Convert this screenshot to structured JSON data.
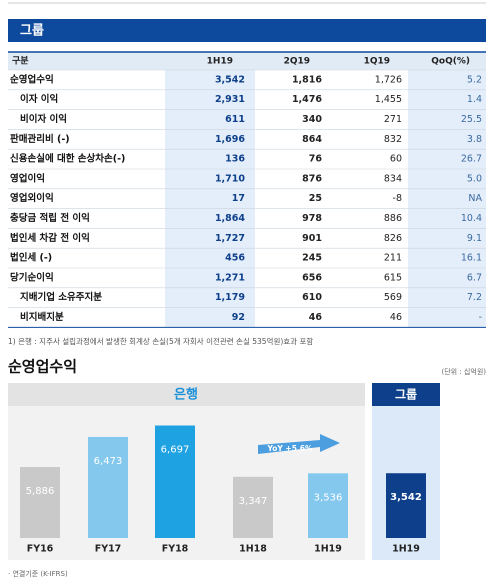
{
  "header": {
    "title": "그룹"
  },
  "table": {
    "columns": [
      "구분",
      "1H19",
      "2Q19",
      "1Q19",
      "QoQ(%)"
    ],
    "rows": [
      [
        "순영업수익",
        "3,542",
        "1,816",
        "1,726",
        "5.2"
      ],
      [
        "이자 이익",
        "2,931",
        "1,476",
        "1,455",
        "1.4"
      ],
      [
        "비이자 이익",
        "611",
        "340",
        "271",
        "25.5"
      ],
      [
        "판매관리비 (-)",
        "1,696",
        "864",
        "832",
        "3.8"
      ],
      [
        "신용손실에 대한 손상차손(-)",
        "136",
        "76",
        "60",
        "26.7"
      ],
      [
        "영업이익",
        "1,710",
        "876",
        "834",
        "5.0"
      ],
      [
        "영업외이익",
        "17",
        "25",
        "-8",
        "NA"
      ],
      [
        "충당금 적립 전 이익",
        "1,864",
        "978",
        "886",
        "10.4"
      ],
      [
        "법인세 차감 전 이익",
        "1,727",
        "901",
        "826",
        "9.1"
      ],
      [
        "법인세 (-)",
        "456",
        "245",
        "211",
        "16.1"
      ],
      [
        "당기순이익",
        "1,271",
        "656",
        "615",
        "6.7"
      ],
      [
        "지배기업 소유주지분",
        "1,179",
        "610",
        "569",
        "7.2"
      ],
      [
        "비지배지분",
        "92",
        "46",
        "46",
        "-"
      ]
    ]
  },
  "footnote": "1) 은행 : 지주사 설립과정에서 발생한 회계상 손실(5개 자회사 이전관련 손실 535억원)효과 포함",
  "section": {
    "title": "순영업수익",
    "unit": "(단위 : 십억원)",
    "bank_label": "은행",
    "group_label": "그룹",
    "note": "· 연결기준 (K-IFRS)"
  },
  "chart_data": [
    {
      "type": "bar",
      "categories": [
        "FY16",
        "FY17",
        "FY18"
      ],
      "values": [
        5886,
        6473,
        6697
      ],
      "value_labels": [
        "5,886",
        "6,473",
        "6,697"
      ],
      "colors": [
        "#c9c9c9",
        "#84c8ee",
        "#1ea2e2"
      ],
      "ylim": [
        4500,
        7000
      ]
    },
    {
      "type": "bar",
      "categories": [
        "1H18",
        "1H19"
      ],
      "values": [
        3347,
        3536
      ],
      "value_labels": [
        "3,347",
        "3,536"
      ],
      "colors": [
        "#c9c9c9",
        "#84c8ee"
      ],
      "ylim": [
        0,
        7000
      ],
      "annotation": "YoY +5.6%"
    },
    {
      "type": "bar",
      "categories": [
        "1H19"
      ],
      "values": [
        3542
      ],
      "value_labels": [
        "3,542"
      ],
      "colors": [
        "#0d3f8a"
      ],
      "ylim": [
        0,
        7000
      ]
    }
  ]
}
